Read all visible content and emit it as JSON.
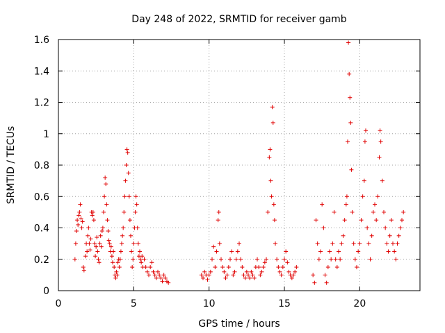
{
  "chart_data": {
    "type": "scatter",
    "title": "Day 248 of 2022, SRMTID for receiver gamb",
    "xlabel": "GPS time / hours",
    "ylabel": "SRMTID / TECUs",
    "xlim": [
      0,
      24
    ],
    "ylim": [
      0,
      1.6
    ],
    "x_ticks": [
      0,
      5,
      10,
      15,
      20
    ],
    "y_ticks": [
      0,
      0.2,
      0.4,
      0.6,
      0.8,
      1,
      1.2,
      1.4,
      1.6
    ],
    "x_tick_labels": [
      "0",
      "5",
      "10",
      "15",
      "20"
    ],
    "y_tick_labels": [
      "0",
      "0.2",
      "0.4",
      "0.6",
      "0.8",
      "1",
      "1.2",
      "1.4",
      "1.6"
    ],
    "grid": true,
    "marker": "+",
    "series_color": "#e00000",
    "series": [
      {
        "name": "SRMTID",
        "points": [
          [
            1.1,
            0.2
          ],
          [
            1.15,
            0.3
          ],
          [
            1.2,
            0.38
          ],
          [
            1.25,
            0.45
          ],
          [
            1.3,
            0.42
          ],
          [
            1.35,
            0.48
          ],
          [
            1.4,
            0.5
          ],
          [
            1.45,
            0.55
          ],
          [
            1.5,
            0.46
          ],
          [
            1.55,
            0.4
          ],
          [
            1.6,
            0.44
          ],
          [
            1.65,
            0.15
          ],
          [
            1.7,
            0.13
          ],
          [
            1.8,
            0.22
          ],
          [
            1.85,
            0.3
          ],
          [
            1.9,
            0.25
          ],
          [
            1.95,
            0.35
          ],
          [
            2.0,
            0.4
          ],
          [
            2.05,
            0.3
          ],
          [
            2.1,
            0.26
          ],
          [
            2.15,
            0.33
          ],
          [
            2.2,
            0.5
          ],
          [
            2.25,
            0.48
          ],
          [
            2.3,
            0.5
          ],
          [
            2.35,
            0.45
          ],
          [
            2.4,
            0.3
          ],
          [
            2.45,
            0.22
          ],
          [
            2.5,
            0.28
          ],
          [
            2.55,
            0.34
          ],
          [
            2.6,
            0.25
          ],
          [
            2.65,
            0.2
          ],
          [
            2.7,
            0.18
          ],
          [
            2.75,
            0.3
          ],
          [
            2.8,
            0.35
          ],
          [
            2.85,
            0.28
          ],
          [
            2.9,
            0.38
          ],
          [
            2.95,
            0.4
          ],
          [
            3.0,
            0.5
          ],
          [
            3.05,
            0.6
          ],
          [
            3.1,
            0.72
          ],
          [
            3.15,
            0.68
          ],
          [
            3.2,
            0.55
          ],
          [
            3.25,
            0.45
          ],
          [
            3.3,
            0.38
          ],
          [
            3.35,
            0.32
          ],
          [
            3.4,
            0.3
          ],
          [
            3.45,
            0.25
          ],
          [
            3.5,
            0.28
          ],
          [
            3.55,
            0.22
          ],
          [
            3.6,
            0.18
          ],
          [
            3.65,
            0.25
          ],
          [
            3.7,
            0.15
          ],
          [
            3.75,
            0.1
          ],
          [
            3.8,
            0.08
          ],
          [
            3.85,
            0.12
          ],
          [
            3.9,
            0.1
          ],
          [
            3.95,
            0.18
          ],
          [
            4.0,
            0.2
          ],
          [
            4.05,
            0.15
          ],
          [
            4.1,
            0.2
          ],
          [
            4.15,
            0.25
          ],
          [
            4.2,
            0.3
          ],
          [
            4.25,
            0.35
          ],
          [
            4.3,
            0.4
          ],
          [
            4.35,
            0.5
          ],
          [
            4.4,
            0.6
          ],
          [
            4.45,
            0.7
          ],
          [
            4.5,
            0.8
          ],
          [
            4.55,
            0.9
          ],
          [
            4.6,
            0.88
          ],
          [
            4.65,
            0.75
          ],
          [
            4.7,
            0.6
          ],
          [
            4.75,
            0.45
          ],
          [
            4.8,
            0.35
          ],
          [
            4.85,
            0.25
          ],
          [
            4.9,
            0.15
          ],
          [
            4.95,
            0.2
          ],
          [
            5.0,
            0.3
          ],
          [
            5.05,
            0.4
          ],
          [
            5.1,
            0.5
          ],
          [
            5.15,
            0.6
          ],
          [
            5.2,
            0.55
          ],
          [
            5.25,
            0.4
          ],
          [
            5.3,
            0.3
          ],
          [
            5.35,
            0.22
          ],
          [
            5.4,
            0.25
          ],
          [
            5.45,
            0.2
          ],
          [
            5.5,
            0.18
          ],
          [
            5.55,
            0.22
          ],
          [
            5.6,
            0.15
          ],
          [
            5.7,
            0.2
          ],
          [
            5.8,
            0.15
          ],
          [
            5.9,
            0.12
          ],
          [
            6.0,
            0.1
          ],
          [
            6.1,
            0.15
          ],
          [
            6.2,
            0.18
          ],
          [
            6.3,
            0.12
          ],
          [
            6.4,
            0.1
          ],
          [
            6.5,
            0.08
          ],
          [
            6.6,
            0.12
          ],
          [
            6.7,
            0.1
          ],
          [
            6.8,
            0.08
          ],
          [
            6.9,
            0.06
          ],
          [
            7.0,
            0.1
          ],
          [
            7.1,
            0.08
          ],
          [
            7.2,
            0.06
          ],
          [
            7.3,
            0.05
          ],
          [
            9.5,
            0.1
          ],
          [
            9.6,
            0.08
          ],
          [
            9.7,
            0.12
          ],
          [
            9.8,
            0.1
          ],
          [
            9.9,
            0.07
          ],
          [
            10.0,
            0.1
          ],
          [
            10.1,
            0.12
          ],
          [
            10.2,
            0.2
          ],
          [
            10.3,
            0.28
          ],
          [
            10.4,
            0.15
          ],
          [
            10.5,
            0.25
          ],
          [
            10.6,
            0.45
          ],
          [
            10.65,
            0.5
          ],
          [
            10.7,
            0.3
          ],
          [
            10.8,
            0.2
          ],
          [
            10.9,
            0.15
          ],
          [
            11.0,
            0.12
          ],
          [
            11.1,
            0.08
          ],
          [
            11.2,
            0.1
          ],
          [
            11.3,
            0.15
          ],
          [
            11.4,
            0.2
          ],
          [
            11.5,
            0.25
          ],
          [
            11.6,
            0.1
          ],
          [
            11.7,
            0.12
          ],
          [
            11.8,
            0.2
          ],
          [
            11.9,
            0.25
          ],
          [
            12.0,
            0.3
          ],
          [
            12.1,
            0.2
          ],
          [
            12.2,
            0.15
          ],
          [
            12.3,
            0.1
          ],
          [
            12.4,
            0.08
          ],
          [
            12.5,
            0.12
          ],
          [
            12.6,
            0.1
          ],
          [
            12.7,
            0.08
          ],
          [
            12.8,
            0.12
          ],
          [
            12.9,
            0.1
          ],
          [
            13.0,
            0.08
          ],
          [
            13.1,
            0.15
          ],
          [
            13.2,
            0.2
          ],
          [
            13.3,
            0.15
          ],
          [
            13.4,
            0.1
          ],
          [
            13.5,
            0.12
          ],
          [
            13.6,
            0.15
          ],
          [
            13.7,
            0.18
          ],
          [
            13.8,
            0.2
          ],
          [
            13.9,
            0.5
          ],
          [
            14.0,
            0.85
          ],
          [
            14.05,
            0.9
          ],
          [
            14.1,
            0.7
          ],
          [
            14.15,
            0.6
          ],
          [
            14.2,
            1.17
          ],
          [
            14.25,
            1.07
          ],
          [
            14.3,
            0.55
          ],
          [
            14.35,
            0.45
          ],
          [
            14.4,
            0.3
          ],
          [
            14.5,
            0.2
          ],
          [
            14.6,
            0.15
          ],
          [
            14.7,
            0.12
          ],
          [
            14.8,
            0.1
          ],
          [
            14.9,
            0.15
          ],
          [
            15.0,
            0.2
          ],
          [
            15.1,
            0.25
          ],
          [
            15.2,
            0.18
          ],
          [
            15.3,
            0.12
          ],
          [
            15.4,
            0.1
          ],
          [
            15.5,
            0.08
          ],
          [
            15.6,
            0.1
          ],
          [
            15.7,
            0.12
          ],
          [
            15.8,
            0.15
          ],
          [
            16.9,
            0.1
          ],
          [
            17.0,
            0.05
          ],
          [
            17.1,
            0.45
          ],
          [
            17.2,
            0.3
          ],
          [
            17.3,
            0.2
          ],
          [
            17.4,
            0.25
          ],
          [
            17.5,
            0.55
          ],
          [
            17.6,
            0.4
          ],
          [
            17.7,
            0.1
          ],
          [
            17.8,
            0.05
          ],
          [
            17.9,
            0.15
          ],
          [
            18.0,
            0.25
          ],
          [
            18.1,
            0.2
          ],
          [
            18.2,
            0.3
          ],
          [
            18.3,
            0.5
          ],
          [
            18.4,
            0.2
          ],
          [
            18.5,
            0.15
          ],
          [
            18.6,
            0.25
          ],
          [
            18.7,
            0.2
          ],
          [
            18.8,
            0.3
          ],
          [
            18.9,
            0.35
          ],
          [
            19.0,
            0.45
          ],
          [
            19.1,
            0.55
          ],
          [
            19.15,
            0.6
          ],
          [
            19.2,
            0.95
          ],
          [
            19.25,
            1.58
          ],
          [
            19.3,
            1.38
          ],
          [
            19.35,
            1.23
          ],
          [
            19.4,
            1.07
          ],
          [
            19.45,
            0.77
          ],
          [
            19.5,
            0.5
          ],
          [
            19.6,
            0.3
          ],
          [
            19.7,
            0.2
          ],
          [
            19.8,
            0.15
          ],
          [
            19.9,
            0.25
          ],
          [
            20.0,
            0.3
          ],
          [
            20.1,
            0.45
          ],
          [
            20.2,
            0.6
          ],
          [
            20.3,
            0.7
          ],
          [
            20.35,
            0.95
          ],
          [
            20.4,
            1.02
          ],
          [
            20.5,
            0.4
          ],
          [
            20.6,
            0.3
          ],
          [
            20.7,
            0.2
          ],
          [
            20.8,
            0.35
          ],
          [
            20.9,
            0.5
          ],
          [
            21.0,
            0.55
          ],
          [
            21.1,
            0.45
          ],
          [
            21.2,
            0.6
          ],
          [
            21.3,
            0.85
          ],
          [
            21.35,
            1.02
          ],
          [
            21.4,
            0.95
          ],
          [
            21.5,
            0.7
          ],
          [
            21.6,
            0.5
          ],
          [
            21.7,
            0.4
          ],
          [
            21.8,
            0.3
          ],
          [
            21.9,
            0.25
          ],
          [
            22.0,
            0.35
          ],
          [
            22.1,
            0.45
          ],
          [
            22.2,
            0.3
          ],
          [
            22.3,
            0.25
          ],
          [
            22.4,
            0.2
          ],
          [
            22.5,
            0.3
          ],
          [
            22.6,
            0.35
          ],
          [
            22.7,
            0.4
          ],
          [
            22.8,
            0.45
          ],
          [
            22.9,
            0.5
          ]
        ]
      }
    ]
  }
}
